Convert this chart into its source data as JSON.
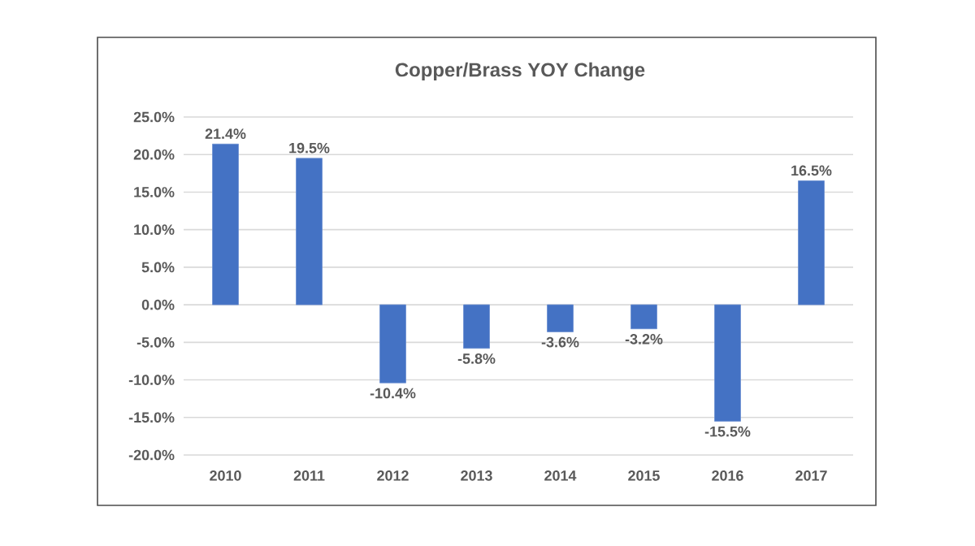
{
  "chart_data": {
    "type": "bar",
    "title": "Copper/Brass YOY Change",
    "categories": [
      "2010",
      "2011",
      "2012",
      "2013",
      "2014",
      "2015",
      "2016",
      "2017"
    ],
    "values": [
      21.4,
      19.5,
      -10.4,
      -5.8,
      -3.6,
      -3.2,
      -15.5,
      16.5
    ],
    "value_labels": [
      "21.4%",
      "19.5%",
      "-10.4%",
      "-5.8%",
      "-3.6%",
      "-3.2%",
      "-15.5%",
      "16.5%"
    ],
    "color": "#4472c4",
    "ylim": [
      -20,
      25
    ],
    "yticks": [
      {
        "value": -20,
        "label": "-20.0%"
      },
      {
        "value": -15,
        "label": "-15.0%"
      },
      {
        "value": -10,
        "label": "-10.0%"
      },
      {
        "value": -5,
        "label": "-5.0%"
      },
      {
        "value": 0,
        "label": "0.0%"
      },
      {
        "value": 5,
        "label": "5.0%"
      },
      {
        "value": 10,
        "label": "10.0%"
      },
      {
        "value": 15,
        "label": "15.0%"
      },
      {
        "value": 20,
        "label": "20.0%"
      },
      {
        "value": 25,
        "label": "25.0%"
      }
    ],
    "grid": "y"
  }
}
